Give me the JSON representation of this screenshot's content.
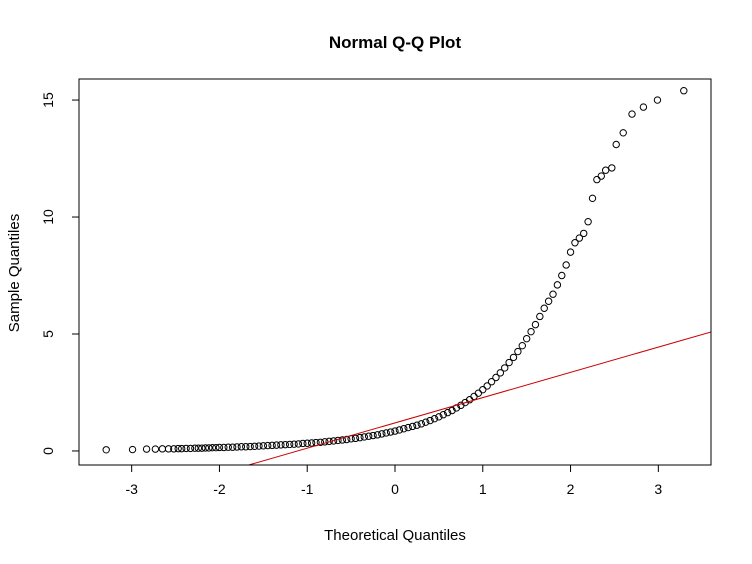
{
  "chart_data": {
    "type": "scatter",
    "title": "Normal Q-Q Plot",
    "xlabel": "Theoretical Quantiles",
    "ylabel": "Sample Quantiles",
    "xlim": [
      -3.6,
      3.6
    ],
    "ylim": [
      -0.6,
      15.9
    ],
    "xticks": [
      -3,
      -2,
      -1,
      0,
      1,
      2,
      3
    ],
    "yticks": [
      0,
      5,
      10,
      15
    ],
    "xtick_labels": [
      "-3",
      "-2",
      "-1",
      "0",
      "1",
      "2",
      "3"
    ],
    "ytick_labels": [
      "0",
      "5",
      "10",
      "15"
    ],
    "marker": "open-circle",
    "point_color": "#000000",
    "series": [
      {
        "name": "Sample quantiles",
        "points": [
          [
            -3.29,
            0.05
          ],
          [
            -2.99,
            0.06
          ],
          [
            -2.83,
            0.08
          ],
          [
            -2.73,
            0.08
          ],
          [
            -2.65,
            0.09
          ],
          [
            -2.58,
            0.09
          ],
          [
            -2.52,
            0.09
          ],
          [
            -2.47,
            0.1
          ],
          [
            -2.43,
            0.1
          ],
          [
            -2.38,
            0.11
          ],
          [
            -2.33,
            0.11
          ],
          [
            -2.28,
            0.12
          ],
          [
            -2.24,
            0.12
          ],
          [
            -2.2,
            0.12
          ],
          [
            -2.16,
            0.13
          ],
          [
            -2.12,
            0.13
          ],
          [
            -2.08,
            0.14
          ],
          [
            -2.04,
            0.14
          ],
          [
            -2.0,
            0.15
          ],
          [
            -1.95,
            0.15
          ],
          [
            -1.9,
            0.16
          ],
          [
            -1.85,
            0.16
          ],
          [
            -1.8,
            0.17
          ],
          [
            -1.75,
            0.18
          ],
          [
            -1.7,
            0.18
          ],
          [
            -1.65,
            0.19
          ],
          [
            -1.6,
            0.2
          ],
          [
            -1.55,
            0.21
          ],
          [
            -1.5,
            0.22
          ],
          [
            -1.45,
            0.23
          ],
          [
            -1.4,
            0.24
          ],
          [
            -1.35,
            0.25
          ],
          [
            -1.3,
            0.26
          ],
          [
            -1.25,
            0.27
          ],
          [
            -1.2,
            0.28
          ],
          [
            -1.15,
            0.29
          ],
          [
            -1.1,
            0.3
          ],
          [
            -1.05,
            0.32
          ],
          [
            -1.0,
            0.33
          ],
          [
            -0.95,
            0.34
          ],
          [
            -0.9,
            0.36
          ],
          [
            -0.85,
            0.37
          ],
          [
            -0.8,
            0.39
          ],
          [
            -0.75,
            0.41
          ],
          [
            -0.7,
            0.43
          ],
          [
            -0.65,
            0.45
          ],
          [
            -0.6,
            0.47
          ],
          [
            -0.55,
            0.49
          ],
          [
            -0.5,
            0.52
          ],
          [
            -0.45,
            0.54
          ],
          [
            -0.4,
            0.57
          ],
          [
            -0.35,
            0.6
          ],
          [
            -0.3,
            0.63
          ],
          [
            -0.25,
            0.66
          ],
          [
            -0.2,
            0.69
          ],
          [
            -0.15,
            0.73
          ],
          [
            -0.1,
            0.77
          ],
          [
            -0.05,
            0.81
          ],
          [
            0.0,
            0.85
          ],
          [
            0.05,
            0.9
          ],
          [
            0.1,
            0.95
          ],
          [
            0.15,
            1.0
          ],
          [
            0.2,
            1.05
          ],
          [
            0.25,
            1.1
          ],
          [
            0.3,
            1.16
          ],
          [
            0.35,
            1.23
          ],
          [
            0.4,
            1.3
          ],
          [
            0.45,
            1.38
          ],
          [
            0.5,
            1.46
          ],
          [
            0.55,
            1.55
          ],
          [
            0.6,
            1.64
          ],
          [
            0.65,
            1.73
          ],
          [
            0.7,
            1.84
          ],
          [
            0.75,
            1.95
          ],
          [
            0.8,
            2.07
          ],
          [
            0.85,
            2.19
          ],
          [
            0.9,
            2.33
          ],
          [
            0.95,
            2.47
          ],
          [
            1.0,
            2.62
          ],
          [
            1.05,
            2.78
          ],
          [
            1.1,
            2.96
          ],
          [
            1.15,
            3.14
          ],
          [
            1.2,
            3.34
          ],
          [
            1.25,
            3.55
          ],
          [
            1.3,
            3.78
          ],
          [
            1.35,
            4.0
          ],
          [
            1.4,
            4.25
          ],
          [
            1.45,
            4.5
          ],
          [
            1.5,
            4.8
          ],
          [
            1.55,
            5.1
          ],
          [
            1.6,
            5.4
          ],
          [
            1.65,
            5.75
          ],
          [
            1.7,
            6.1
          ],
          [
            1.75,
            6.4
          ],
          [
            1.8,
            6.7
          ],
          [
            1.85,
            7.1
          ],
          [
            1.9,
            7.5
          ],
          [
            1.95,
            7.95
          ],
          [
            2.0,
            8.5
          ],
          [
            2.05,
            8.9
          ],
          [
            2.1,
            9.1
          ],
          [
            2.15,
            9.3
          ],
          [
            2.2,
            9.8
          ],
          [
            2.25,
            10.8
          ],
          [
            2.3,
            11.6
          ],
          [
            2.35,
            11.75
          ],
          [
            2.4,
            12.0
          ],
          [
            2.47,
            12.1
          ],
          [
            2.52,
            13.1
          ],
          [
            2.6,
            13.6
          ],
          [
            2.7,
            14.4
          ],
          [
            2.83,
            14.7
          ],
          [
            2.99,
            15.0
          ],
          [
            3.29,
            15.4
          ]
        ]
      }
    ],
    "reference_line": {
      "type": "abline",
      "intercept": 1.2,
      "slope": 1.08,
      "color": "#cc0000"
    }
  }
}
